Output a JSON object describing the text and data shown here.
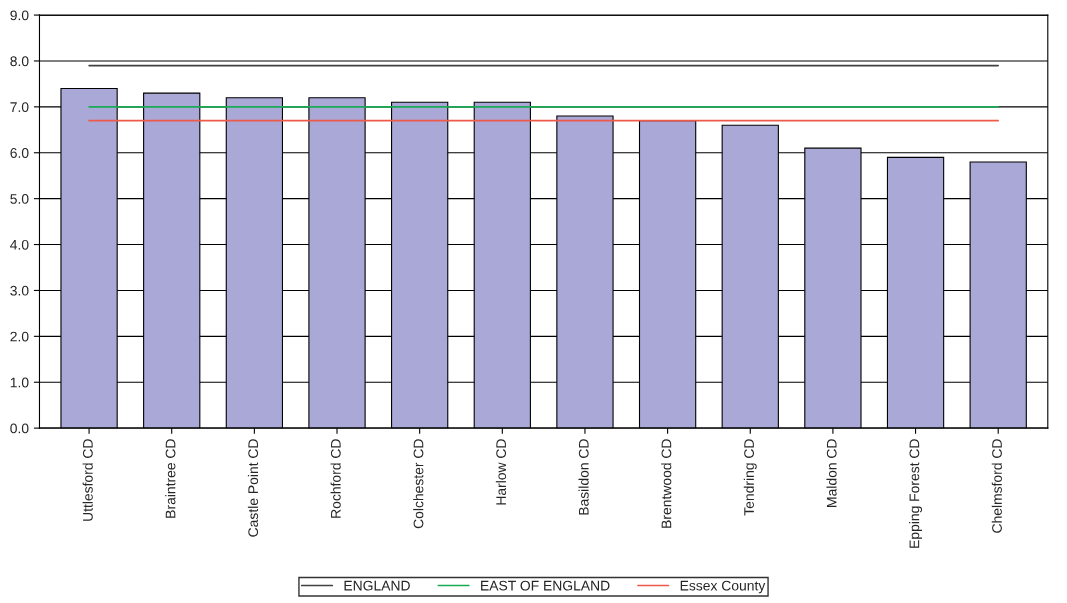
{
  "chart_data": {
    "type": "bar",
    "categories": [
      "Uttlesford CD",
      "Braintree CD",
      "Castle Point CD",
      "Rochford CD",
      "Colchester CD",
      "Harlow CD",
      "Basildon CD",
      "Brentwood CD",
      "Tendring CD",
      "Maldon CD",
      "Epping Forest CD",
      "Chelmsford CD"
    ],
    "series": [
      {
        "color": "#aaa8d6",
        "values": [
          7.4,
          7.3,
          7.2,
          7.2,
          7.1,
          7.1,
          6.8,
          6.7,
          6.6,
          6.1,
          5.9,
          5.8
        ]
      },
      {
        "type": "line",
        "name": "ENGLAND",
        "color": "#404040",
        "values": [
          7.9,
          7.9,
          7.9,
          7.9,
          7.9,
          7.9,
          7.9,
          7.9,
          7.9,
          7.9,
          7.9,
          7.9
        ]
      },
      {
        "type": "line",
        "name": "EAST OF ENGLAND",
        "color": "#1aaa55",
        "values": [
          7.0,
          7.0,
          7.0,
          7.0,
          7.0,
          7.0,
          7.0,
          7.0,
          7.0,
          7.0,
          7.0,
          7.0
        ]
      },
      {
        "type": "line",
        "name": "Essex County",
        "color": "#ee5a4a",
        "values": [
          6.7,
          6.7,
          6.7,
          6.7,
          6.7,
          6.7,
          6.7,
          6.7,
          6.7,
          6.7,
          6.7,
          6.7
        ]
      }
    ],
    "ylim": [
      0,
      9
    ],
    "yticks": [
      {
        "value": 0,
        "label": "0.0"
      },
      {
        "value": 1,
        "label": "1.0"
      },
      {
        "value": 2,
        "label": "2.0"
      },
      {
        "value": 3,
        "label": "3.0"
      },
      {
        "value": 4,
        "label": "4.0"
      },
      {
        "value": 5,
        "label": "5.0"
      },
      {
        "value": 6,
        "label": "6.0"
      },
      {
        "value": 7,
        "label": "7.0"
      },
      {
        "value": 8,
        "label": "8.0"
      },
      {
        "value": 9,
        "label": "9.0"
      }
    ],
    "grid": "y",
    "legend": "bottom",
    "line_style": "solid",
    "marker": "none"
  }
}
